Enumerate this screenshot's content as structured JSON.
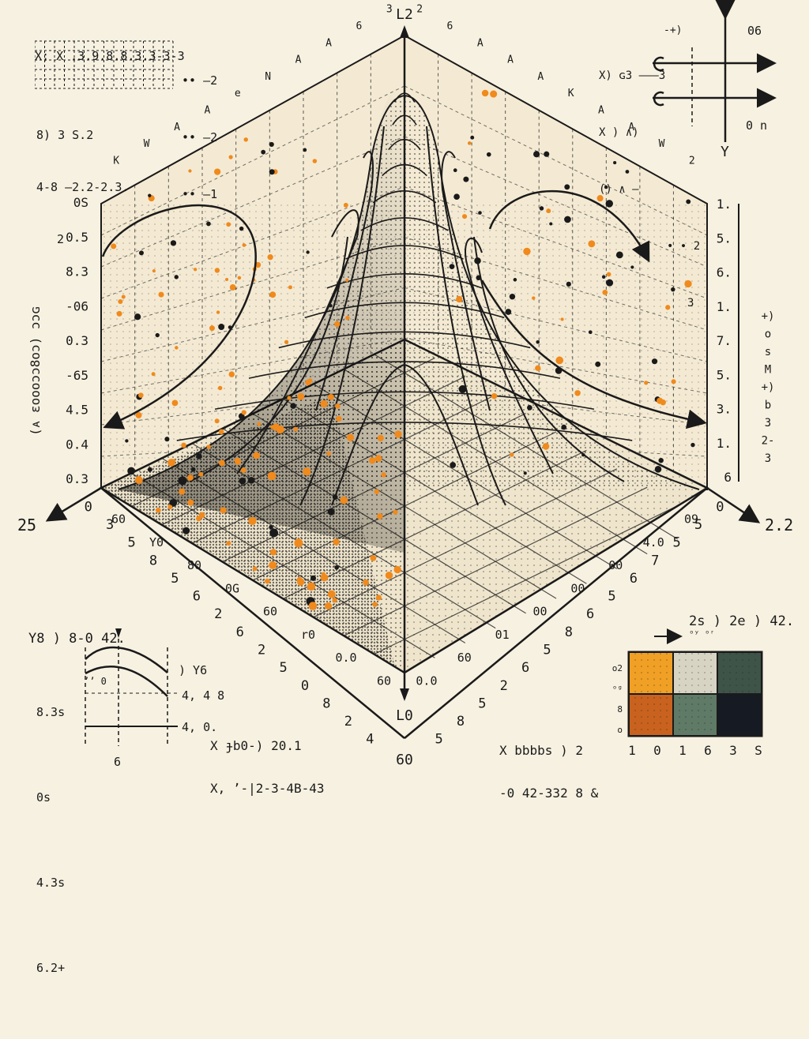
{
  "chart_data": {
    "type": "surface-3d",
    "apex_label": "L2",
    "bottom_label": "L0",
    "left_axis_end_label": "25",
    "right_axis_end_label": "2.2",
    "bottom_corner_label": "60",
    "left_wall_axis_label": "(ᴀ ɛoooɔɔ8oɔ) ɔɔɢ",
    "left_wall_ticks": [
      "0S",
      "0.5",
      "8.3",
      "-06",
      "0.3",
      "-65",
      "4.5",
      "0.4",
      "0.3"
    ],
    "right_wall_ticks": [
      "1.",
      "5.",
      "6.",
      "1.",
      "7.",
      "5.",
      "3.",
      "1.",
      "6"
    ],
    "right_wall_side_label": [
      "+)",
      "o",
      "s",
      "M",
      "+)",
      "b",
      "3",
      "2-",
      "3"
    ],
    "top_left_edge_ticks": [
      "K",
      "W",
      "A",
      "A",
      "e",
      "N",
      "A",
      "A",
      "6",
      "3"
    ],
    "top_right_edge_ticks": [
      "2",
      "6",
      "A",
      "A",
      "A",
      "K",
      "A",
      "A",
      "W",
      "2"
    ],
    "front_left_edge_ticks": [
      "60",
      "Y0",
      "80",
      "0G",
      "60",
      "r0",
      "0.0",
      "60"
    ],
    "front_right_edge_ticks": [
      "09",
      "4.0",
      "00",
      "00",
      "00",
      "01",
      "60",
      "0.0"
    ],
    "outer_left_ticks": [
      "0",
      "3",
      "5",
      "8",
      "5",
      "6",
      "2",
      "6",
      "2",
      "5",
      "0",
      "8",
      "2",
      "4"
    ],
    "outer_right_ticks": [
      "0",
      "5",
      "5",
      "7",
      "6",
      "5",
      "6",
      "8",
      "5",
      "6",
      "2",
      "5",
      "8",
      "5"
    ],
    "peak": {
      "x": 0.5,
      "y": 0.5,
      "height": 1.0
    },
    "colors": {
      "ink": "#1a1a1a",
      "orange": "#f08a1c",
      "paper": "#f7f1e1"
    }
  },
  "annotations": {
    "top_left_block": {
      "line1": "X; X .3.9.8.8.3.3-3-3",
      "rows": [
        "•• –2",
        "•• –2",
        "•• –1"
      ],
      "line2": "8) 3 S.2",
      "line3": "4-8 –2.2-2.3.",
      "line4": "2"
    },
    "top_right_block": {
      "rows": [
        "X) ɢ3 ——–3",
        "X ) ∧)",
        "() ∧ —",
        "• ∙ 2",
        "3"
      ],
      "top_label": "06",
      "axis_label": "Y",
      "mid_label": "0 n",
      "arrow_label": "-+)"
    },
    "bottom_left_block": {
      "title": "Y8 ) 8-0 42.",
      "sub": "ʼʼ 0",
      "ticks": [
        "8.3s",
        "0s",
        "4.3s",
        "6.2+"
      ],
      "x_tick": "6",
      "side_label": ") Y6",
      "side_label2": "4, 4 8",
      "side_label3": "4, 0."
    },
    "bottom_mid_left_formula": {
      "line1": "X ɟb0-) 20.1",
      "line2": "X, ʼ-|2-3-4B-43"
    },
    "bottom_mid_right_formula": {
      "line1": "X bbbbs ) 2",
      "line2": "-0 42-332 8 &"
    },
    "legend_heatmap": {
      "title": "2s ) 2e ) 42.",
      "sub": "ᵒʸ ᵒʳ",
      "row_labels": [
        "o2",
        "ᵒᵍ",
        "8",
        "o"
      ],
      "col_labels": [
        "1",
        "0",
        "1",
        "6",
        "3",
        "S"
      ],
      "cells": [
        "#f0a024",
        "#d8d4c4",
        "#3e5448",
        "#c8621e",
        "#5f7a66",
        "#161a22"
      ]
    }
  }
}
